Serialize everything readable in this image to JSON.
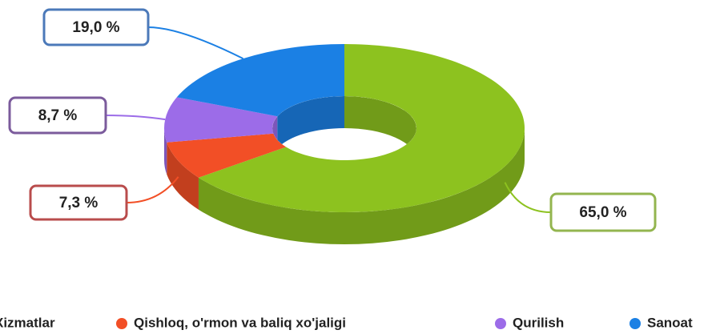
{
  "chart_data": {
    "type": "donut3d",
    "categories": [
      "Xizmatlar",
      "Qishloq, o'rmon va baliq xo'jaligi",
      "Qurilish",
      "Sanoat"
    ],
    "values": [
      65.0,
      7.3,
      8.7,
      19.0
    ],
    "value_labels": [
      "65,0 %",
      "7,3 %",
      "8,7 %",
      "19,0 %"
    ],
    "colors": [
      "#8dc21f",
      "#f24f26",
      "#9c6ce8",
      "#1b80e4"
    ],
    "legend": "bottom"
  }
}
